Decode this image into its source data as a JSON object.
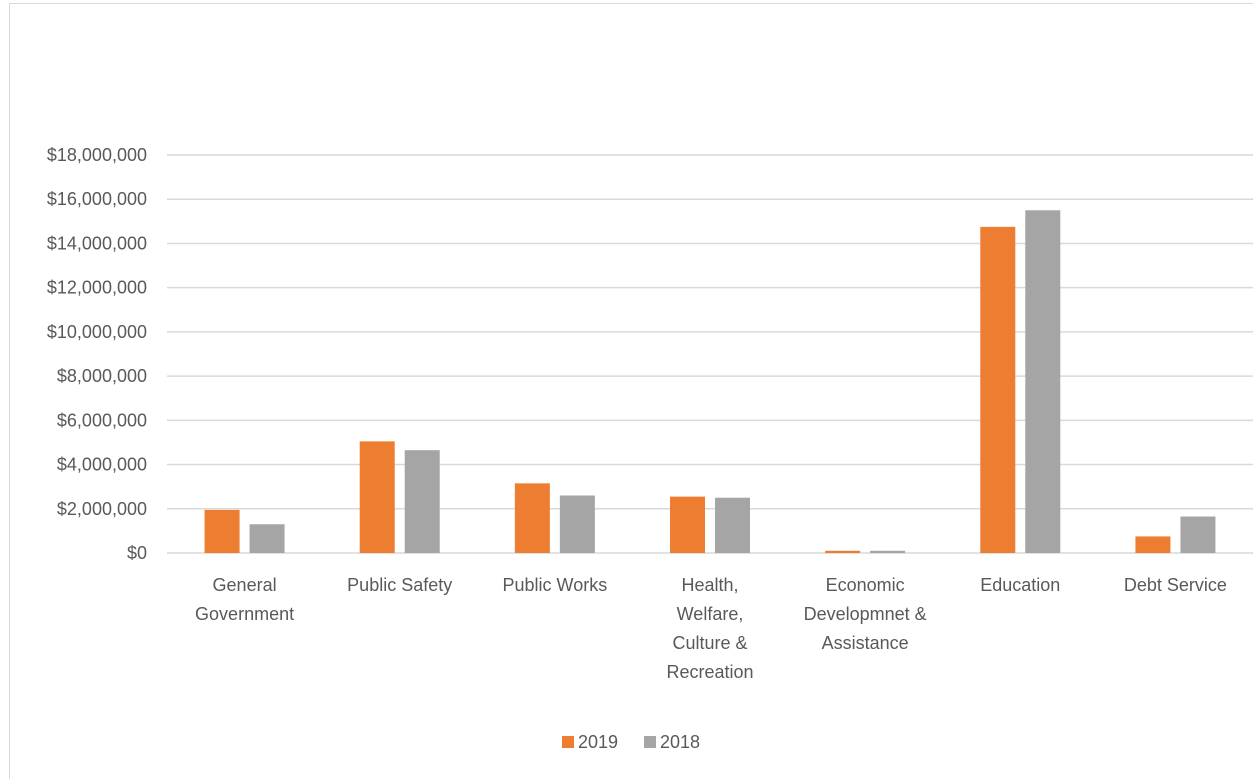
{
  "chart_data": {
    "type": "bar",
    "title": "",
    "xlabel": "",
    "ylabel": "",
    "categories": [
      [
        "General",
        "Government"
      ],
      [
        "Public Safety"
      ],
      [
        "Public Works"
      ],
      [
        "Health,",
        "Welfare,",
        "Culture &",
        "Recreation"
      ],
      [
        "Economic",
        "Developmnet &",
        "Assistance"
      ],
      [
        "Education"
      ],
      [
        "Debt Service"
      ]
    ],
    "series": [
      {
        "name": "2019",
        "color": "#ed7d31",
        "values": [
          1950000,
          5050000,
          3150000,
          2550000,
          100000,
          14750000,
          750000
        ]
      },
      {
        "name": "2018",
        "color": "#a5a5a5",
        "values": [
          1300000,
          4650000,
          2600000,
          2500000,
          100000,
          15500000,
          1650000
        ]
      }
    ],
    "ylim": [
      0,
      18000000
    ],
    "yticks": [
      0,
      2000000,
      4000000,
      6000000,
      8000000,
      10000000,
      12000000,
      14000000,
      16000000,
      18000000
    ],
    "ytick_labels": [
      "$0",
      "$2,000,000",
      "$4,000,000",
      "$6,000,000",
      "$8,000,000",
      "$10,000,000",
      "$12,000,000",
      "$14,000,000",
      "$16,000,000",
      "$18,000,000"
    ],
    "grid": true,
    "gridline_color": "#d9d9d9",
    "legend_position": "bottom-center"
  }
}
